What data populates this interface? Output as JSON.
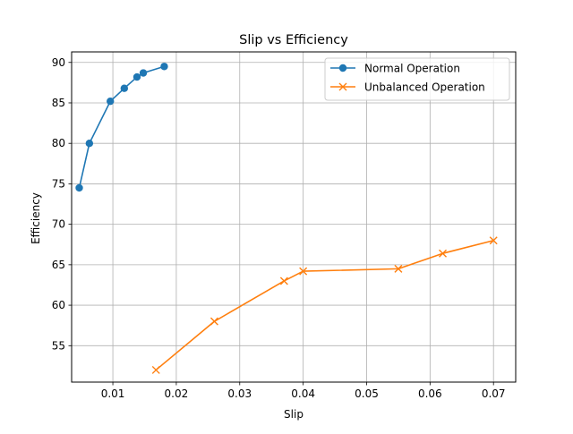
{
  "chart_data": {
    "type": "line",
    "title": "Slip vs Efficiency",
    "xlabel": "Slip",
    "ylabel": "Efficiency",
    "xlim": [
      0.0035,
      0.0735
    ],
    "ylim": [
      50.5,
      91.3
    ],
    "x_ticks": [
      0.01,
      0.02,
      0.03,
      0.04,
      0.05,
      0.06,
      0.07
    ],
    "x_tick_labels": [
      "0.01",
      "0.02",
      "0.03",
      "0.04",
      "0.05",
      "0.06",
      "0.07"
    ],
    "y_ticks": [
      55,
      60,
      65,
      70,
      75,
      80,
      85,
      90
    ],
    "y_tick_labels": [
      "55",
      "60",
      "65",
      "70",
      "75",
      "80",
      "85",
      "90"
    ],
    "grid": true,
    "legend_position": "top-right",
    "series": [
      {
        "name": "Normal Operation",
        "color": "#1f77b4",
        "marker": "circle",
        "x": [
          0.0047,
          0.0063,
          0.0096,
          0.0118,
          0.0138,
          0.0148,
          0.0181
        ],
        "y": [
          74.5,
          80.0,
          85.2,
          86.8,
          88.2,
          88.7,
          89.5
        ]
      },
      {
        "name": "Unbalanced Operation",
        "color": "#ff7f0e",
        "marker": "x",
        "x": [
          0.0168,
          0.026,
          0.037,
          0.04,
          0.055,
          0.062,
          0.07
        ],
        "y": [
          52.0,
          58.0,
          63.0,
          64.2,
          64.5,
          66.4,
          68.0
        ]
      }
    ]
  }
}
